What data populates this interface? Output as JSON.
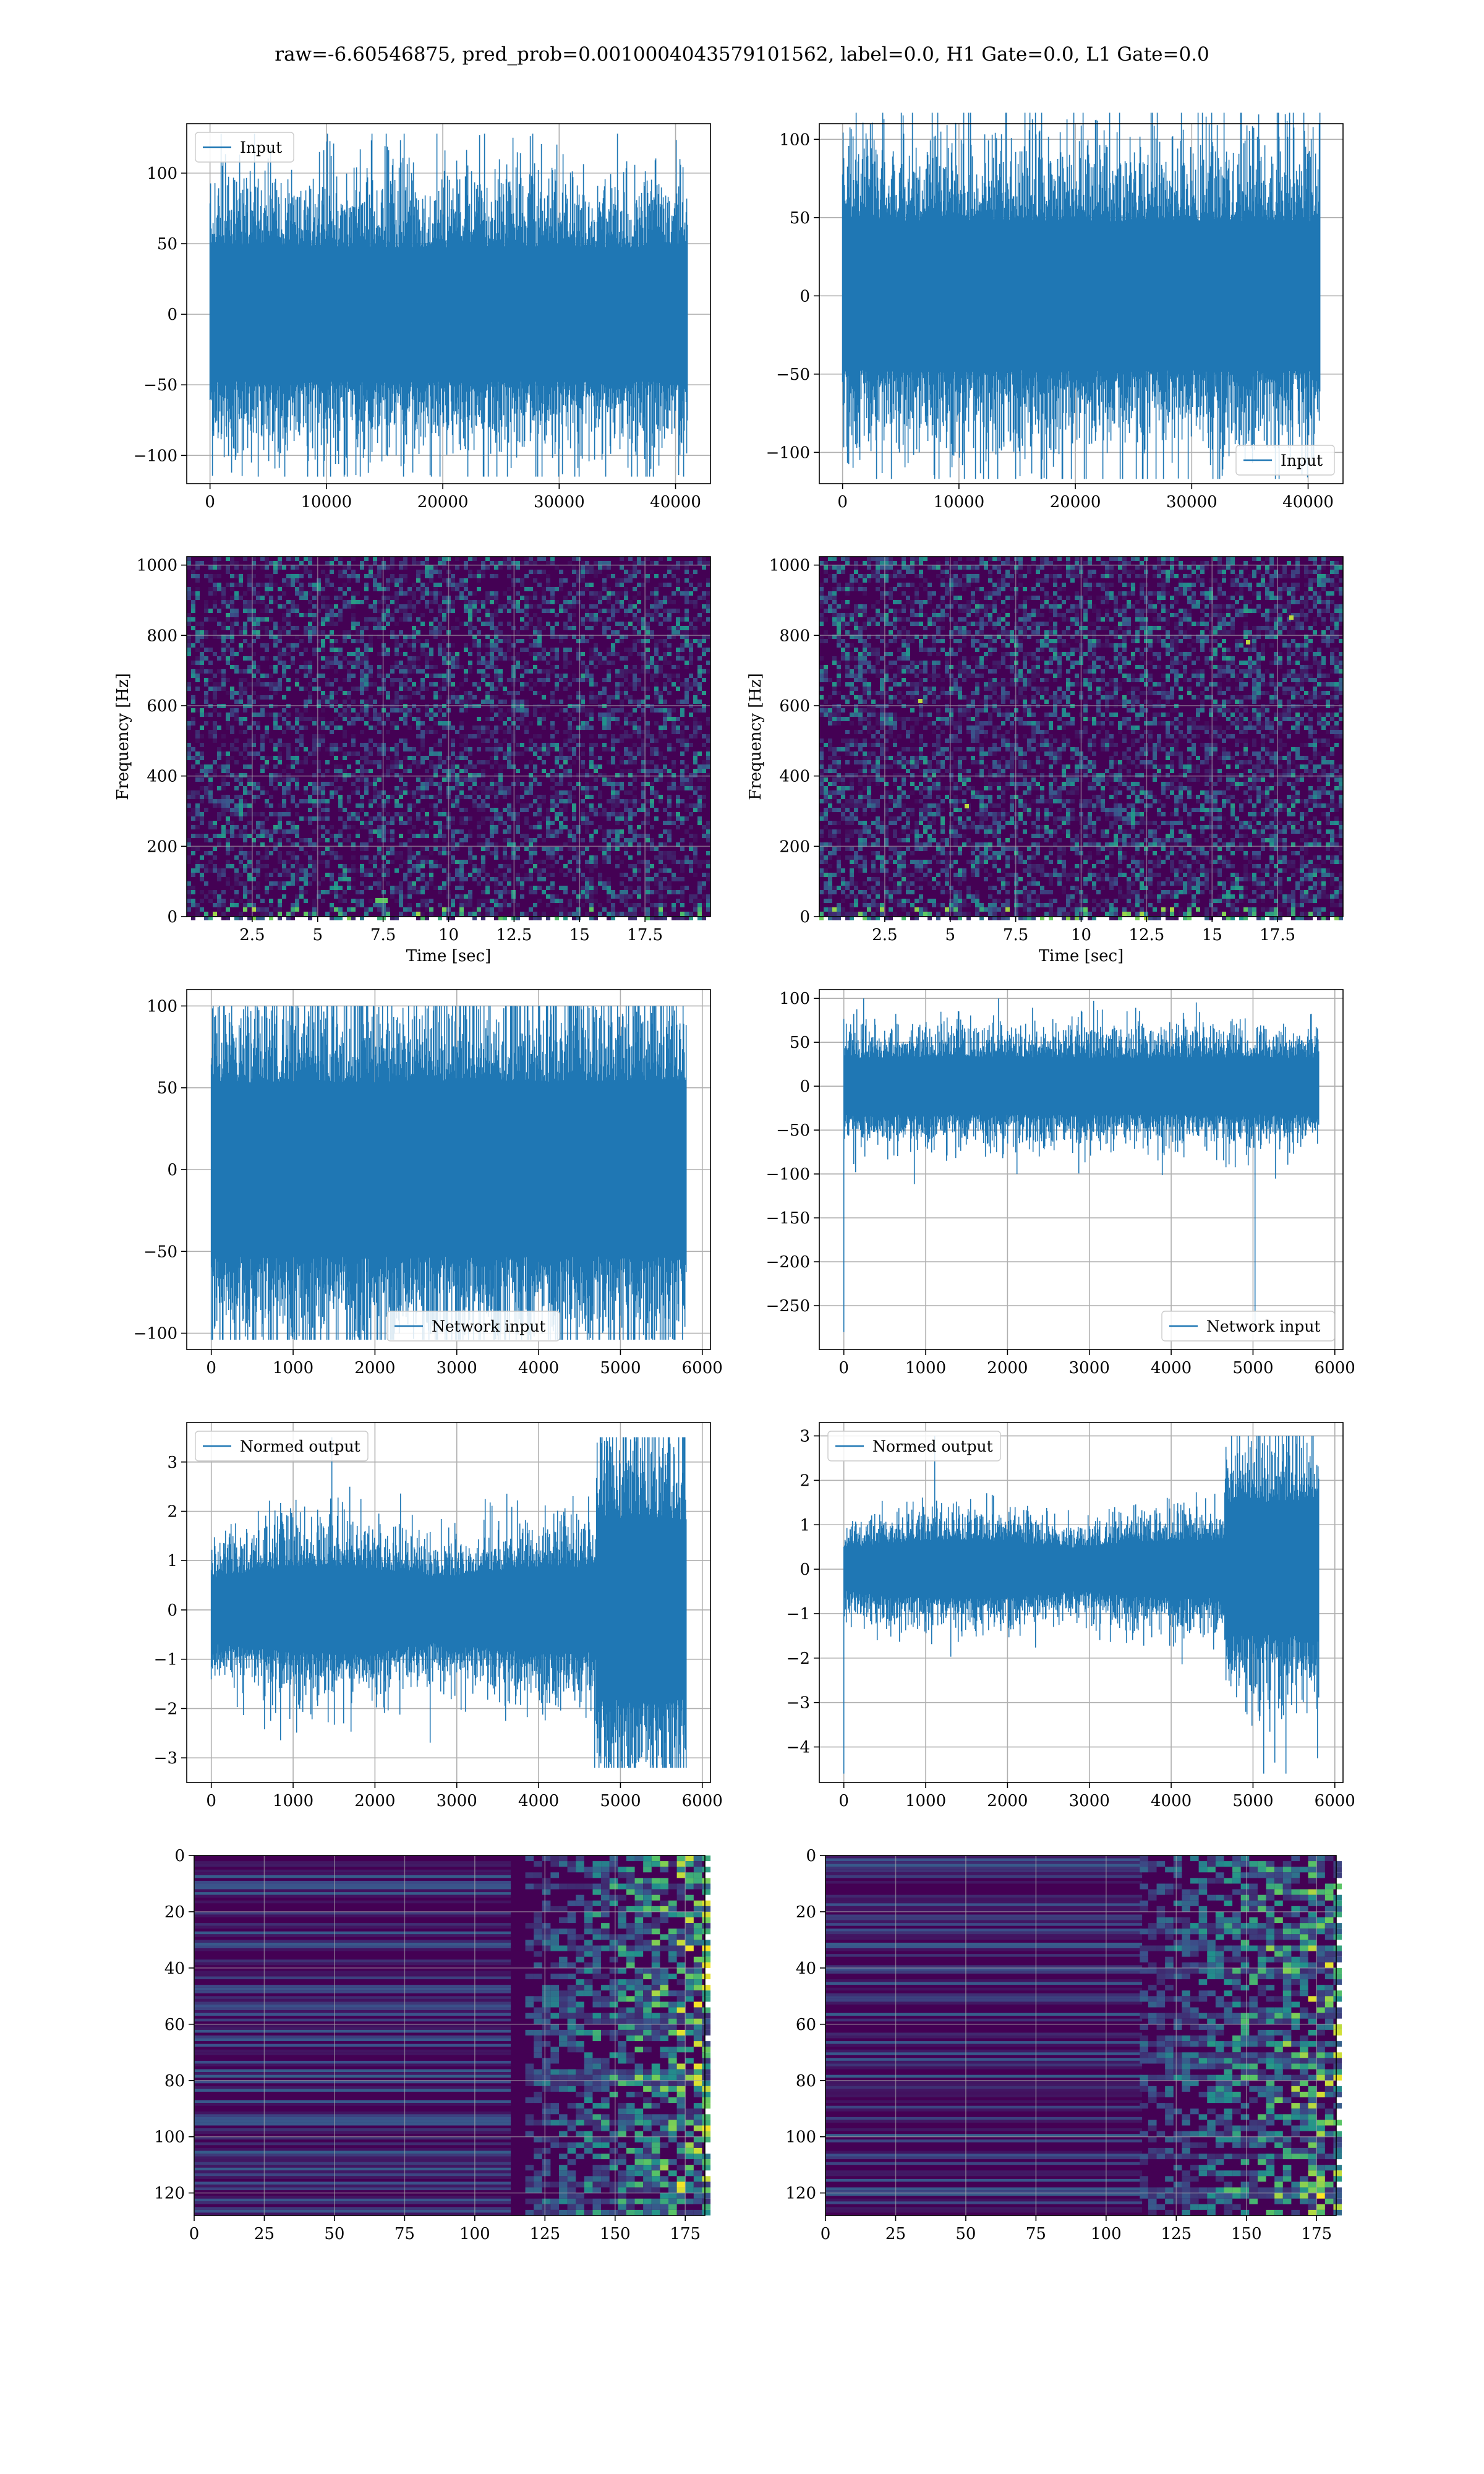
{
  "suptitle": "raw=-6.60546875, pred_prob=0.0010004043579101562, label=0.0, H1 Gate=0.0, L1 Gate=0.0",
  "colors": {
    "series": "#1f77b4",
    "grid": "#b0b0b0",
    "viridis_dark": "#440154",
    "viridis_blue": "#3b528b",
    "viridis_teal": "#21918c",
    "viridis_green": "#5ec962",
    "viridis_yellow": "#fde725"
  },
  "chart_data": [
    {
      "id": "input-h1",
      "type": "line",
      "series": [
        {
          "name": "Input",
          "kind": "noise",
          "n": 41000,
          "std": 25,
          "peak": 128,
          "trough": -115
        }
      ],
      "xlim": [
        -2000,
        43000
      ],
      "ylim": [
        -120,
        135
      ],
      "xticks": [
        0,
        10000,
        20000,
        30000,
        40000
      ],
      "yticks": [
        -100,
        -50,
        0,
        50,
        100
      ],
      "legend": "upper left"
    },
    {
      "id": "input-l1",
      "type": "line",
      "series": [
        {
          "name": "Input",
          "kind": "noise",
          "n": 41000,
          "std": 25,
          "peak": 117,
          "trough": -117
        }
      ],
      "xlim": [
        -2000,
        43000
      ],
      "ylim": [
        -120,
        110
      ],
      "xticks": [
        0,
        10000,
        20000,
        30000,
        40000
      ],
      "yticks": [
        -100,
        -50,
        0,
        50,
        100
      ],
      "legend": "lower right"
    },
    {
      "id": "spec-h1",
      "type": "heatmap",
      "xlabel": "Time [sec]",
      "ylabel": "Frequency [Hz]",
      "xlim": [
        0,
        20
      ],
      "ylim": [
        0,
        1024
      ],
      "xticks": [
        2.5,
        5.0,
        7.5,
        10.0,
        12.5,
        15.0,
        17.5
      ],
      "yticks": [
        0,
        200,
        400,
        600,
        800,
        1000
      ],
      "colormap": "viridis"
    },
    {
      "id": "spec-l1",
      "type": "heatmap",
      "xlabel": "Time [sec]",
      "ylabel": "Frequency [Hz]",
      "xlim": [
        0,
        20
      ],
      "ylim": [
        0,
        1024
      ],
      "xticks": [
        2.5,
        5.0,
        7.5,
        10.0,
        12.5,
        15.0,
        17.5
      ],
      "yticks": [
        0,
        200,
        400,
        600,
        800,
        1000
      ],
      "colormap": "viridis"
    },
    {
      "id": "net-h1",
      "type": "line",
      "series": [
        {
          "name": "Network input",
          "kind": "noise",
          "n": 5800,
          "std": 28,
          "peak": 100,
          "trough": -104
        }
      ],
      "xlim": [
        -300,
        6100
      ],
      "ylim": [
        -110,
        110
      ],
      "xticks": [
        0,
        1000,
        2000,
        3000,
        4000,
        5000,
        6000
      ],
      "yticks": [
        -100,
        -50,
        0,
        50,
        100
      ],
      "legend": "lower center"
    },
    {
      "id": "net-l1",
      "type": "line",
      "series": [
        {
          "name": "Network input",
          "kind": "noise",
          "n": 5800,
          "std": 17,
          "peak": 100,
          "trough": -280
        }
      ],
      "xlim": [
        -300,
        6100
      ],
      "ylim": [
        -300,
        110
      ],
      "xticks": [
        0,
        1000,
        2000,
        3000,
        4000,
        5000,
        6000
      ],
      "yticks": [
        -250,
        -200,
        -150,
        -100,
        -50,
        0,
        50,
        100
      ],
      "legend": "lower right"
    },
    {
      "id": "norm-h1",
      "type": "line",
      "series": [
        {
          "name": "Normed output",
          "kind": "noise",
          "n": 5800,
          "std": 0.4,
          "peak": 3.5,
          "trough": -3.2,
          "burst_start": 4700,
          "burst_gain": 2.4
        }
      ],
      "xlim": [
        -300,
        6100
      ],
      "ylim": [
        -3.5,
        3.8
      ],
      "xticks": [
        0,
        1000,
        2000,
        3000,
        4000,
        5000,
        6000
      ],
      "yticks": [
        -3,
        -2,
        -1,
        0,
        1,
        2,
        3
      ],
      "legend": "upper left"
    },
    {
      "id": "norm-l1",
      "type": "line",
      "series": [
        {
          "name": "Normed output",
          "kind": "noise",
          "n": 5800,
          "std": 0.3,
          "peak": 3.0,
          "trough": -4.6,
          "burst_start": 4650,
          "burst_gain": 2.6
        }
      ],
      "xlim": [
        -300,
        6100
      ],
      "ylim": [
        -4.8,
        3.3
      ],
      "xticks": [
        0,
        1000,
        2000,
        3000,
        4000,
        5000,
        6000
      ],
      "yticks": [
        -4,
        -3,
        -2,
        -1,
        0,
        1,
        2,
        3
      ],
      "legend": "upper left"
    },
    {
      "id": "feat-h1",
      "type": "heatmap",
      "xlim": [
        0,
        182
      ],
      "ylim": [
        128,
        0
      ],
      "xticks": [
        0,
        25,
        50,
        75,
        100,
        125,
        150,
        175
      ],
      "yticks": [
        0,
        20,
        40,
        60,
        80,
        100,
        120
      ],
      "colormap": "viridis"
    },
    {
      "id": "feat-l1",
      "type": "heatmap",
      "xlim": [
        0,
        182
      ],
      "ylim": [
        128,
        0
      ],
      "xticks": [
        0,
        25,
        50,
        75,
        100,
        125,
        150,
        175
      ],
      "yticks": [
        0,
        20,
        40,
        60,
        80,
        100,
        120
      ],
      "colormap": "viridis"
    }
  ]
}
